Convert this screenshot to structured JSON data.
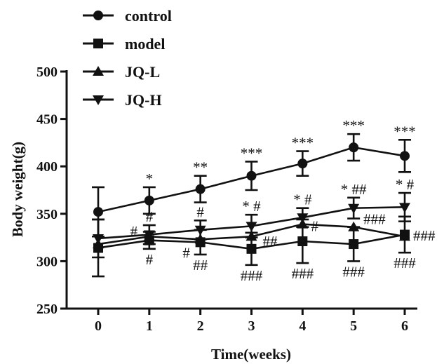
{
  "chart_data": {
    "type": "line",
    "xlabel": "Time(weeks)",
    "ylabel": "Body weight(g)",
    "ylim": [
      250,
      500
    ],
    "xlim": [
      0,
      6
    ],
    "x": [
      0,
      1,
      2,
      3,
      4,
      5,
      6
    ],
    "yticks": [
      250,
      300,
      350,
      400,
      450,
      500
    ],
    "grid": false,
    "legend_position": "top-left",
    "series": [
      {
        "name": "control",
        "marker": "circle",
        "values": [
          352,
          364,
          376,
          390,
          403,
          420,
          411
        ],
        "errors": [
          26,
          14,
          14,
          15,
          13,
          14,
          17
        ],
        "significance": [
          "",
          "*",
          "**",
          "***",
          "***",
          "***",
          "***"
        ]
      },
      {
        "name": "model",
        "marker": "square",
        "values": [
          314,
          322,
          320,
          313,
          321,
          318,
          328
        ],
        "errors": [
          30,
          9,
          13,
          17,
          23,
          18,
          19
        ],
        "significance": [
          "",
          "#",
          "##",
          "###",
          "###",
          "###",
          "###"
        ]
      },
      {
        "name": "JQ-L",
        "marker": "triangle-up",
        "values": [
          318,
          326,
          323,
          326,
          339,
          336,
          326
        ],
        "errors": [
          0,
          0,
          0,
          0,
          0,
          0,
          0
        ],
        "significance": [
          "",
          "#",
          "#",
          "##",
          "#",
          "###",
          "###"
        ]
      },
      {
        "name": "JQ-H",
        "marker": "triangle-down",
        "values": [
          324,
          328,
          333,
          337,
          346,
          356,
          357
        ],
        "errors": [
          20,
          10,
          10,
          12,
          10,
          11,
          15
        ],
        "significance": [
          "",
          "#",
          "#",
          "* #",
          "* #",
          "* ##",
          "* #"
        ]
      }
    ],
    "colors": {
      "line": "#111111"
    }
  }
}
